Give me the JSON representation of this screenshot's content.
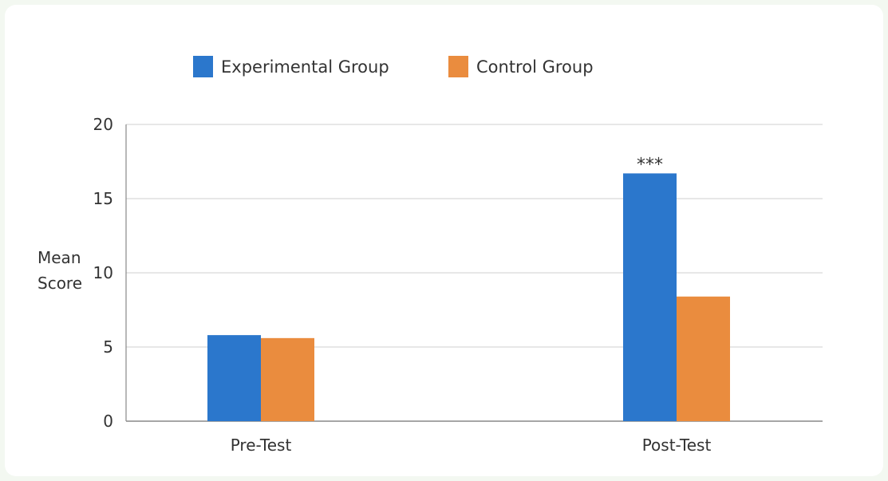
{
  "chart_data": {
    "type": "bar",
    "ylabel_lines": [
      "Mean",
      "Score"
    ],
    "ylim": [
      0,
      20
    ],
    "yticks": [
      0,
      5,
      10,
      15,
      20
    ],
    "grid": true,
    "legend_position": "top",
    "categories": [
      "Pre-Test",
      "Post-Test"
    ],
    "series": [
      {
        "name": "Experimental Group",
        "color": "#2b77cc",
        "values": [
          5.8,
          16.7
        ]
      },
      {
        "name": "Control Group",
        "color": "#ea8c3e",
        "values": [
          5.6,
          8.4
        ]
      }
    ],
    "annotations": [
      {
        "text": "***",
        "category": "Post-Test",
        "series": "Experimental Group"
      }
    ]
  }
}
